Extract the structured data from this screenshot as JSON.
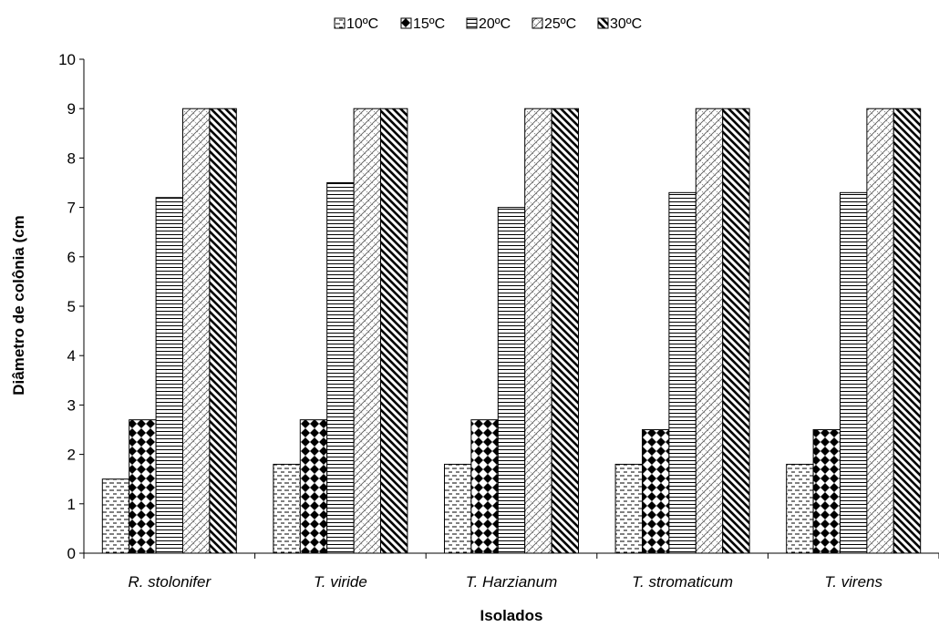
{
  "chart_data": {
    "type": "bar",
    "title": "",
    "xlabel": "Isolados",
    "ylabel": "Diâmetro de colônia (cm",
    "ylim": [
      0,
      10
    ],
    "yticks": [
      "0",
      "1",
      "2",
      "3",
      "4",
      "5",
      "6",
      "7",
      "8",
      "9",
      "10"
    ],
    "categories": [
      "R. stolonifer",
      "T. viride",
      "T. Harzianum",
      "T. stromaticum",
      "T. virens"
    ],
    "grid": false,
    "legend_position": "top",
    "series": [
      {
        "name": "10ºC",
        "pattern": "dashed-horizontal",
        "values": [
          1.5,
          1.8,
          1.8,
          1.8,
          1.8
        ]
      },
      {
        "name": "15ºC",
        "pattern": "diamond-checker",
        "values": [
          2.7,
          2.7,
          2.7,
          2.5,
          2.5
        ]
      },
      {
        "name": "20ºC",
        "pattern": "horizontal-lines",
        "values": [
          7.2,
          7.5,
          7.0,
          7.3,
          7.3
        ]
      },
      {
        "name": "25ºC",
        "pattern": "light-diagonal-cross",
        "values": [
          9,
          9,
          9,
          9,
          9
        ]
      },
      {
        "name": "30ºC",
        "pattern": "wide-downward-diagonal",
        "values": [
          9,
          9,
          9,
          9,
          9
        ]
      }
    ]
  }
}
